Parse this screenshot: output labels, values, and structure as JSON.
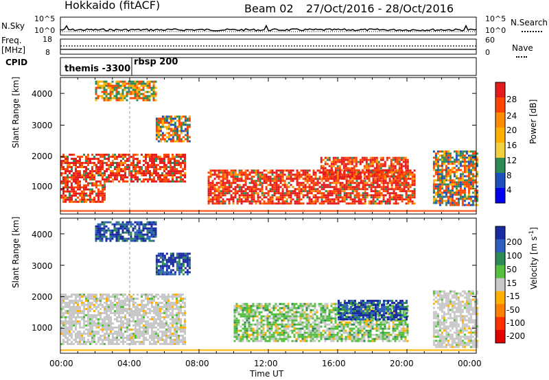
{
  "header": {
    "station": "Hokkaido (fitACF)",
    "beam": "Beam 02",
    "dates": "27/Oct/2016 - 28/Oct/2016"
  },
  "aux_panels": {
    "nsky_label": "N.Sky",
    "nsky_ticks": [
      "10^5",
      "10^0"
    ],
    "nsearch_label": "N.Search",
    "nsearch_ticks": [
      "10^5",
      "10^0"
    ],
    "freq_label_line1": "Freq.",
    "freq_label_line2": "[MHz]",
    "freq_ticks": [
      "18",
      "8"
    ],
    "nave_label": "Nave",
    "nave_ticks": [
      "60",
      "0"
    ],
    "cpid_label": "CPID",
    "cpid_entries": [
      "themis -3300",
      "rbsp 200"
    ]
  },
  "chart_data": [
    {
      "type": "heatmap",
      "name": "power",
      "ylabel": "Slant Range [km]",
      "yticks": [
        "4000",
        "3000",
        "2000",
        "1000"
      ],
      "ylim": [
        200,
        4500
      ],
      "xlim": [
        0,
        24
      ],
      "xticks": [
        "00:00",
        "04:00",
        "08:00",
        "12:00",
        "16:00",
        "20:00",
        "00:00"
      ],
      "xlabel": "Time UT",
      "colorbar": {
        "label": "Power [dB]",
        "ticks": [
          "28",
          "24",
          "20",
          "16",
          "12",
          "8",
          "4"
        ],
        "colors": [
          "#e41a1c",
          "#ff4500",
          "#ff8c00",
          "#ffb000",
          "#f4d03f",
          "#2e8b57",
          "#1e4fbf",
          "#0000ee"
        ]
      },
      "echo_regions": [
        {
          "t0": 0,
          "t1": 7.2,
          "r0": 1200,
          "r1": 2100,
          "level": "high"
        },
        {
          "t0": 0,
          "t1": 2.5,
          "r0": 600,
          "r1": 1200,
          "level": "high"
        },
        {
          "t0": 5.5,
          "t1": 7.5,
          "r0": 2500,
          "r1": 3300,
          "level": "mid"
        },
        {
          "t0": 8.5,
          "t1": 20.5,
          "r0": 500,
          "r1": 1600,
          "level": "high"
        },
        {
          "t0": 15,
          "t1": 20,
          "r0": 1300,
          "r1": 2000,
          "level": "high"
        },
        {
          "t0": 21.5,
          "t1": 24,
          "r0": 500,
          "r1": 2200,
          "level": "mid"
        },
        {
          "t0": 2,
          "t1": 5.5,
          "r0": 3800,
          "r1": 4400,
          "level": "low"
        }
      ]
    },
    {
      "type": "heatmap",
      "name": "velocity",
      "ylabel": "Slant Range [km]",
      "yticks": [
        "4000",
        "3000",
        "2000",
        "1000"
      ],
      "ylim": [
        200,
        4500
      ],
      "xlim": [
        0,
        24
      ],
      "xticks": [
        "00:00",
        "04:00",
        "08:00",
        "12:00",
        "16:00",
        "20:00",
        "00:00"
      ],
      "xlabel": "Time UT",
      "colorbar": {
        "label": "Velocity [m s^-1]",
        "ticks": [
          "200",
          "100",
          "50",
          "15",
          "-15",
          "-50",
          "-100",
          "-200"
        ],
        "colors": [
          "#1a2aa0",
          "#2e5fbf",
          "#2e8b57",
          "#55c040",
          "#c8c8c8",
          "#ffb000",
          "#ff7f00",
          "#ff3000",
          "#e00000"
        ]
      },
      "echo_regions": [
        {
          "t0": 0,
          "t1": 7.2,
          "r0": 500,
          "r1": 2100,
          "level": "ground"
        },
        {
          "t0": 5.5,
          "t1": 7.5,
          "r0": 2700,
          "r1": 3400,
          "level": "pos"
        },
        {
          "t0": 10,
          "t1": 20,
          "r0": 600,
          "r1": 1800,
          "level": "mixed"
        },
        {
          "t0": 16,
          "t1": 20,
          "r0": 1300,
          "r1": 1900,
          "level": "pos"
        },
        {
          "t0": 21.5,
          "t1": 24,
          "r0": 400,
          "r1": 2200,
          "level": "ground"
        },
        {
          "t0": 2,
          "t1": 5.5,
          "r0": 3800,
          "r1": 4400,
          "level": "pos"
        }
      ]
    }
  ]
}
